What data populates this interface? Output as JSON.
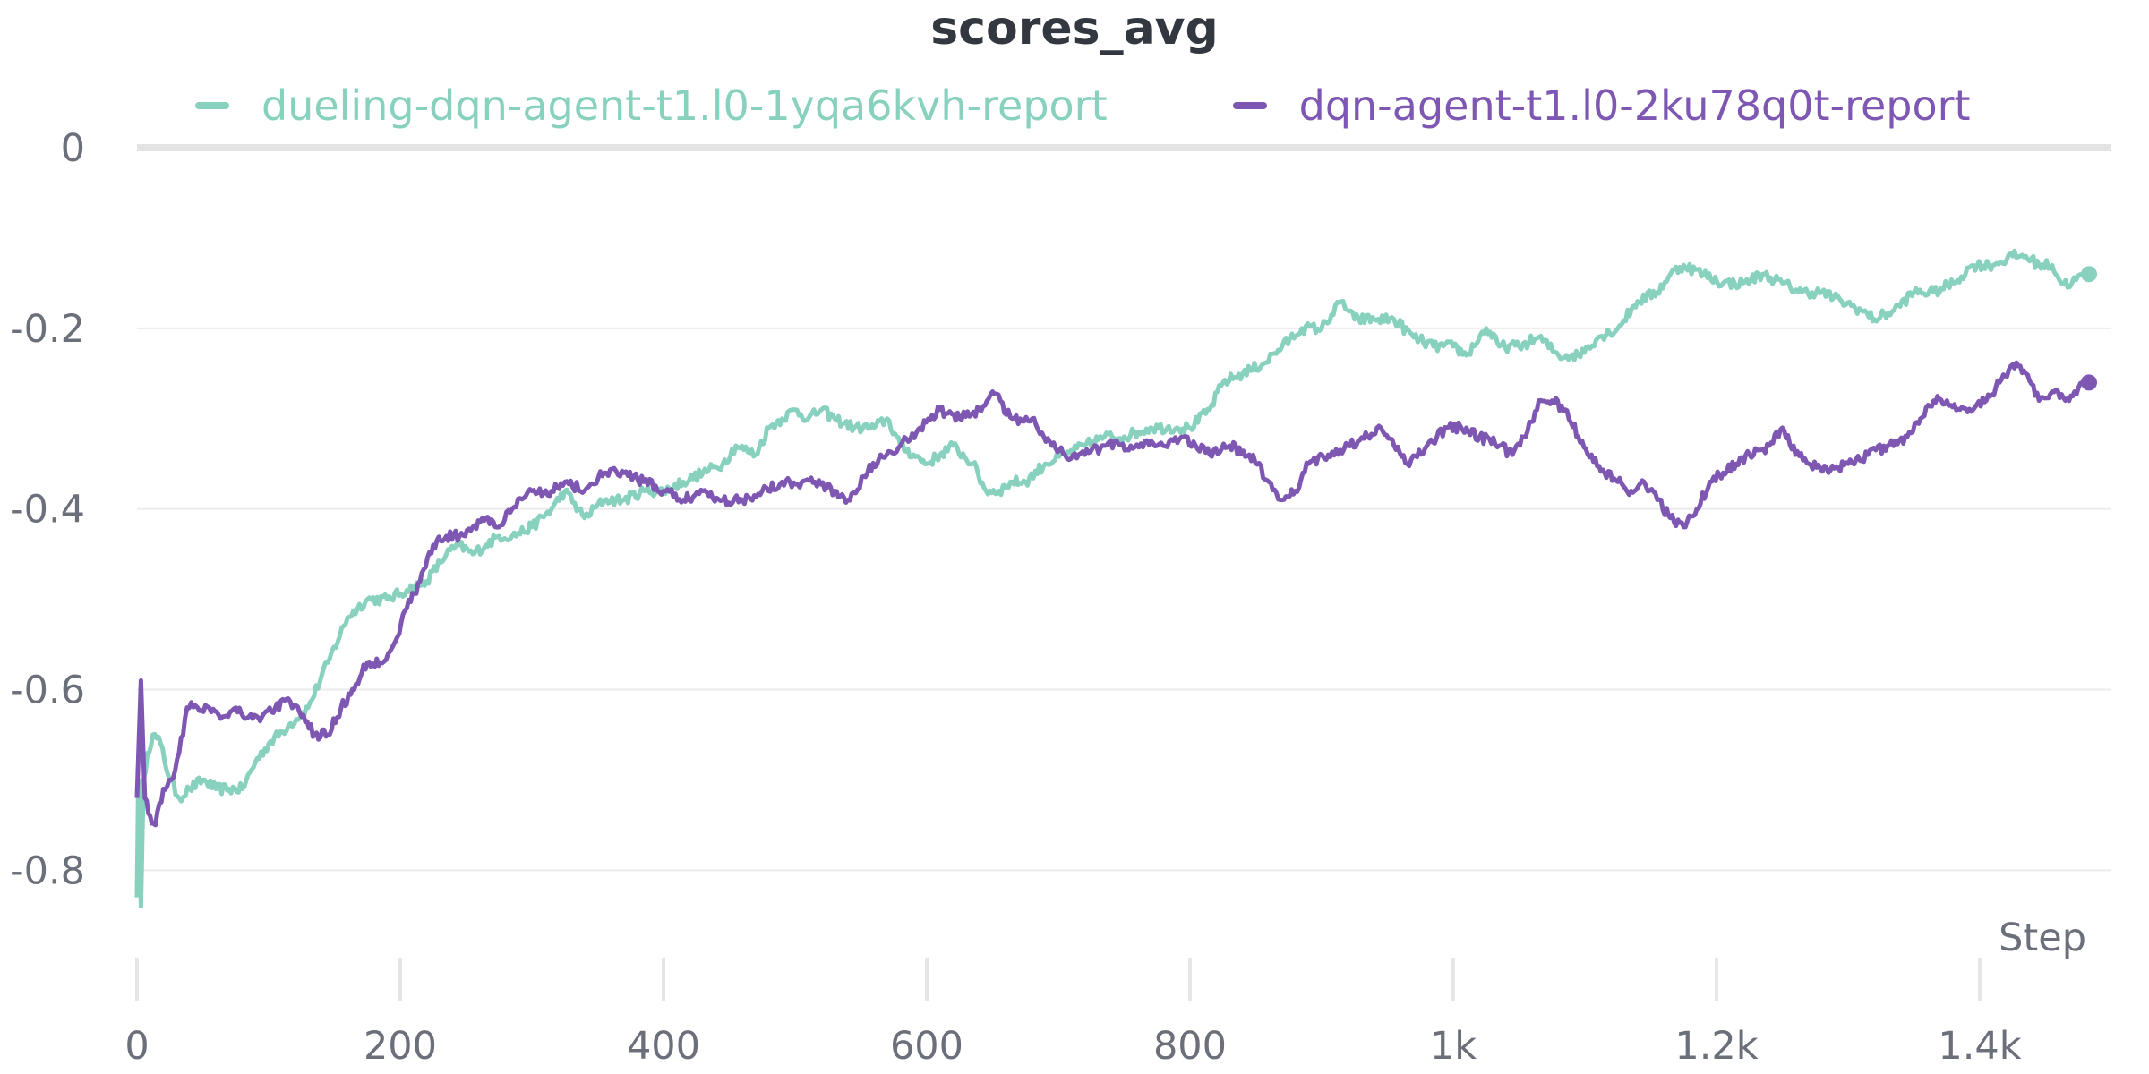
{
  "chart_data": {
    "type": "line",
    "title": "scores_avg",
    "xlabel": "Step",
    "ylabel": "",
    "xlim": [
      0,
      1500
    ],
    "ylim": [
      -0.87,
      0.0
    ],
    "x_ticks": [
      0,
      200,
      400,
      600,
      800,
      1000,
      1200,
      1400
    ],
    "x_tick_labels": [
      "0",
      "200",
      "400",
      "600",
      "800",
      "1k",
      "1.2k",
      "1.4k"
    ],
    "y_ticks": [
      0,
      -0.2,
      -0.4,
      -0.6,
      -0.8
    ],
    "y_tick_labels": [
      "0",
      "-0.2",
      "-0.4",
      "-0.6",
      "-0.8"
    ],
    "grid": true,
    "legend_position": "top",
    "series": [
      {
        "name": "dueling-dqn-agent-t1.l0-1yqa6kvh-report",
        "color": "#88d1bf",
        "points": [
          [
            0,
            -0.83
          ],
          [
            1,
            -0.7
          ],
          [
            3,
            -0.84
          ],
          [
            5,
            -0.7
          ],
          [
            8,
            -0.67
          ],
          [
            12,
            -0.65
          ],
          [
            18,
            -0.66
          ],
          [
            25,
            -0.7
          ],
          [
            32,
            -0.72
          ],
          [
            40,
            -0.71
          ],
          [
            50,
            -0.7
          ],
          [
            60,
            -0.71
          ],
          [
            70,
            -0.71
          ],
          [
            80,
            -0.71
          ],
          [
            90,
            -0.68
          ],
          [
            100,
            -0.66
          ],
          [
            115,
            -0.64
          ],
          [
            130,
            -0.62
          ],
          [
            145,
            -0.57
          ],
          [
            160,
            -0.52
          ],
          [
            175,
            -0.5
          ],
          [
            190,
            -0.5
          ],
          [
            205,
            -0.49
          ],
          [
            220,
            -0.48
          ],
          [
            235,
            -0.45
          ],
          [
            245,
            -0.44
          ],
          [
            255,
            -0.45
          ],
          [
            265,
            -0.44
          ],
          [
            275,
            -0.43
          ],
          [
            285,
            -0.43
          ],
          [
            300,
            -0.42
          ],
          [
            315,
            -0.4
          ],
          [
            325,
            -0.38
          ],
          [
            340,
            -0.41
          ],
          [
            355,
            -0.39
          ],
          [
            370,
            -0.39
          ],
          [
            385,
            -0.38
          ],
          [
            400,
            -0.38
          ],
          [
            415,
            -0.37
          ],
          [
            430,
            -0.36
          ],
          [
            445,
            -0.35
          ],
          [
            455,
            -0.33
          ],
          [
            470,
            -0.34
          ],
          [
            480,
            -0.31
          ],
          [
            490,
            -0.3
          ],
          [
            500,
            -0.29
          ],
          [
            510,
            -0.3
          ],
          [
            520,
            -0.29
          ],
          [
            530,
            -0.3
          ],
          [
            545,
            -0.31
          ],
          [
            560,
            -0.31
          ],
          [
            570,
            -0.3
          ],
          [
            580,
            -0.33
          ],
          [
            590,
            -0.34
          ],
          [
            600,
            -0.35
          ],
          [
            610,
            -0.34
          ],
          [
            620,
            -0.33
          ],
          [
            635,
            -0.35
          ],
          [
            645,
            -0.38
          ],
          [
            655,
            -0.38
          ],
          [
            665,
            -0.37
          ],
          [
            675,
            -0.37
          ],
          [
            690,
            -0.35
          ],
          [
            705,
            -0.34
          ],
          [
            720,
            -0.33
          ],
          [
            735,
            -0.32
          ],
          [
            750,
            -0.32
          ],
          [
            770,
            -0.31
          ],
          [
            790,
            -0.31
          ],
          [
            800,
            -0.31
          ],
          [
            815,
            -0.29
          ],
          [
            825,
            -0.26
          ],
          [
            840,
            -0.25
          ],
          [
            855,
            -0.24
          ],
          [
            870,
            -0.22
          ],
          [
            885,
            -0.2
          ],
          [
            900,
            -0.2
          ],
          [
            915,
            -0.17
          ],
          [
            925,
            -0.19
          ],
          [
            940,
            -0.19
          ],
          [
            955,
            -0.19
          ],
          [
            970,
            -0.21
          ],
          [
            985,
            -0.22
          ],
          [
            1000,
            -0.22
          ],
          [
            1010,
            -0.23
          ],
          [
            1025,
            -0.2
          ],
          [
            1035,
            -0.22
          ],
          [
            1050,
            -0.22
          ],
          [
            1065,
            -0.21
          ],
          [
            1080,
            -0.23
          ],
          [
            1095,
            -0.23
          ],
          [
            1110,
            -0.21
          ],
          [
            1125,
            -0.2
          ],
          [
            1140,
            -0.17
          ],
          [
            1155,
            -0.16
          ],
          [
            1165,
            -0.14
          ],
          [
            1175,
            -0.13
          ],
          [
            1190,
            -0.14
          ],
          [
            1205,
            -0.15
          ],
          [
            1220,
            -0.15
          ],
          [
            1235,
            -0.14
          ],
          [
            1250,
            -0.15
          ],
          [
            1265,
            -0.16
          ],
          [
            1280,
            -0.16
          ],
          [
            1295,
            -0.17
          ],
          [
            1310,
            -0.18
          ],
          [
            1320,
            -0.19
          ],
          [
            1335,
            -0.18
          ],
          [
            1350,
            -0.16
          ],
          [
            1365,
            -0.16
          ],
          [
            1380,
            -0.15
          ],
          [
            1395,
            -0.13
          ],
          [
            1410,
            -0.13
          ],
          [
            1425,
            -0.12
          ],
          [
            1435,
            -0.12
          ],
          [
            1445,
            -0.13
          ],
          [
            1455,
            -0.13
          ],
          [
            1462,
            -0.15
          ],
          [
            1470,
            -0.15
          ],
          [
            1478,
            -0.14
          ],
          [
            1483,
            -0.14
          ]
        ]
      },
      {
        "name": "dqn-agent-t1.l0-2ku78q0t-report",
        "color": "#7e57b3",
        "points": [
          [
            0,
            -0.72
          ],
          [
            3,
            -0.59
          ],
          [
            6,
            -0.72
          ],
          [
            10,
            -0.74
          ],
          [
            14,
            -0.75
          ],
          [
            20,
            -0.71
          ],
          [
            26,
            -0.7
          ],
          [
            32,
            -0.67
          ],
          [
            38,
            -0.62
          ],
          [
            46,
            -0.62
          ],
          [
            55,
            -0.62
          ],
          [
            65,
            -0.63
          ],
          [
            75,
            -0.62
          ],
          [
            85,
            -0.63
          ],
          [
            95,
            -0.63
          ],
          [
            105,
            -0.62
          ],
          [
            115,
            -0.61
          ],
          [
            125,
            -0.63
          ],
          [
            135,
            -0.65
          ],
          [
            145,
            -0.65
          ],
          [
            155,
            -0.62
          ],
          [
            165,
            -0.6
          ],
          [
            175,
            -0.57
          ],
          [
            185,
            -0.57
          ],
          [
            195,
            -0.55
          ],
          [
            205,
            -0.51
          ],
          [
            215,
            -0.48
          ],
          [
            225,
            -0.44
          ],
          [
            235,
            -0.43
          ],
          [
            245,
            -0.43
          ],
          [
            255,
            -0.42
          ],
          [
            265,
            -0.41
          ],
          [
            275,
            -0.42
          ],
          [
            285,
            -0.4
          ],
          [
            300,
            -0.38
          ],
          [
            315,
            -0.38
          ],
          [
            325,
            -0.37
          ],
          [
            340,
            -0.38
          ],
          [
            355,
            -0.36
          ],
          [
            370,
            -0.36
          ],
          [
            385,
            -0.37
          ],
          [
            400,
            -0.38
          ],
          [
            415,
            -0.39
          ],
          [
            430,
            -0.38
          ],
          [
            445,
            -0.39
          ],
          [
            460,
            -0.39
          ],
          [
            475,
            -0.38
          ],
          [
            490,
            -0.37
          ],
          [
            505,
            -0.37
          ],
          [
            515,
            -0.37
          ],
          [
            530,
            -0.38
          ],
          [
            540,
            -0.39
          ],
          [
            555,
            -0.36
          ],
          [
            565,
            -0.34
          ],
          [
            580,
            -0.33
          ],
          [
            595,
            -0.31
          ],
          [
            610,
            -0.29
          ],
          [
            625,
            -0.3
          ],
          [
            640,
            -0.29
          ],
          [
            650,
            -0.27
          ],
          [
            665,
            -0.3
          ],
          [
            680,
            -0.3
          ],
          [
            695,
            -0.33
          ],
          [
            705,
            -0.34
          ],
          [
            720,
            -0.34
          ],
          [
            735,
            -0.33
          ],
          [
            755,
            -0.33
          ],
          [
            775,
            -0.33
          ],
          [
            795,
            -0.32
          ],
          [
            815,
            -0.34
          ],
          [
            830,
            -0.33
          ],
          [
            845,
            -0.34
          ],
          [
            860,
            -0.37
          ],
          [
            870,
            -0.39
          ],
          [
            880,
            -0.38
          ],
          [
            890,
            -0.35
          ],
          [
            905,
            -0.34
          ],
          [
            920,
            -0.33
          ],
          [
            935,
            -0.32
          ],
          [
            945,
            -0.31
          ],
          [
            955,
            -0.33
          ],
          [
            965,
            -0.35
          ],
          [
            980,
            -0.33
          ],
          [
            995,
            -0.31
          ],
          [
            1010,
            -0.31
          ],
          [
            1020,
            -0.32
          ],
          [
            1035,
            -0.33
          ],
          [
            1045,
            -0.34
          ],
          [
            1055,
            -0.32
          ],
          [
            1065,
            -0.28
          ],
          [
            1075,
            -0.28
          ],
          [
            1085,
            -0.29
          ],
          [
            1095,
            -0.32
          ],
          [
            1105,
            -0.34
          ],
          [
            1115,
            -0.36
          ],
          [
            1125,
            -0.37
          ],
          [
            1135,
            -0.38
          ],
          [
            1145,
            -0.37
          ],
          [
            1155,
            -0.39
          ],
          [
            1165,
            -0.41
          ],
          [
            1175,
            -0.42
          ],
          [
            1185,
            -0.4
          ],
          [
            1195,
            -0.37
          ],
          [
            1205,
            -0.36
          ],
          [
            1215,
            -0.35
          ],
          [
            1225,
            -0.34
          ],
          [
            1240,
            -0.33
          ],
          [
            1250,
            -0.31
          ],
          [
            1260,
            -0.34
          ],
          [
            1270,
            -0.35
          ],
          [
            1285,
            -0.36
          ],
          [
            1300,
            -0.35
          ],
          [
            1315,
            -0.34
          ],
          [
            1330,
            -0.33
          ],
          [
            1345,
            -0.32
          ],
          [
            1355,
            -0.3
          ],
          [
            1365,
            -0.28
          ],
          [
            1375,
            -0.28
          ],
          [
            1385,
            -0.29
          ],
          [
            1395,
            -0.29
          ],
          [
            1405,
            -0.28
          ],
          [
            1415,
            -0.26
          ],
          [
            1425,
            -0.24
          ],
          [
            1435,
            -0.25
          ],
          [
            1445,
            -0.28
          ],
          [
            1455,
            -0.27
          ],
          [
            1465,
            -0.28
          ],
          [
            1472,
            -0.27
          ],
          [
            1478,
            -0.26
          ],
          [
            1483,
            -0.26
          ]
        ]
      }
    ]
  }
}
